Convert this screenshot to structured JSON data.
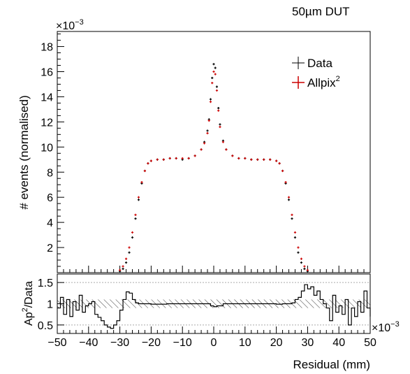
{
  "chart_data": [
    {
      "type": "scatter",
      "panel": "main",
      "annotation": "50µm DUT",
      "ylabel": "# events (normalised)",
      "y_exponent_label": "×10",
      "y_exponent_power": "−3",
      "xlim": [
        -0.05,
        0.05
      ],
      "ylim": [
        0,
        0.0192
      ],
      "yticks": [
        0.002,
        0.004,
        0.006,
        0.008,
        0.01,
        0.012,
        0.014,
        0.016,
        0.018
      ],
      "ytick_labels": [
        "2",
        "4",
        "6",
        "8",
        "10",
        "12",
        "14",
        "16",
        "18"
      ],
      "legend_position": "top-right",
      "series": [
        {
          "name": "Data",
          "color": "#000000",
          "x": [
            -0.03,
            -0.029,
            -0.028,
            -0.027,
            -0.026,
            -0.025,
            -0.024,
            -0.023,
            -0.022,
            -0.021,
            -0.02,
            -0.018,
            -0.016,
            -0.014,
            -0.012,
            -0.01,
            -0.008,
            -0.006,
            -0.004,
            -0.003,
            -0.002,
            -0.0015,
            -0.001,
            -0.0005,
            0.0,
            0.0005,
            0.001,
            0.0015,
            0.002,
            0.003,
            0.004,
            0.006,
            0.008,
            0.01,
            0.012,
            0.014,
            0.016,
            0.018,
            0.02,
            0.021,
            0.022,
            0.023,
            0.024,
            0.025,
            0.026,
            0.027,
            0.028,
            0.029,
            0.03
          ],
          "y": [
            0.0001,
            0.0003,
            0.0008,
            0.0016,
            0.0028,
            0.0043,
            0.0058,
            0.0071,
            0.0081,
            0.0087,
            0.0089,
            0.009,
            0.009,
            0.0091,
            0.0091,
            0.009,
            0.0091,
            0.0093,
            0.0098,
            0.0104,
            0.0113,
            0.0122,
            0.0138,
            0.0155,
            0.0166,
            0.0163,
            0.0148,
            0.0131,
            0.0118,
            0.0105,
            0.0098,
            0.0093,
            0.0091,
            0.0091,
            0.009,
            0.009,
            0.009,
            0.009,
            0.0089,
            0.0087,
            0.0081,
            0.0071,
            0.0058,
            0.0043,
            0.0028,
            0.0016,
            0.0008,
            0.0003,
            0.0001
          ]
        },
        {
          "name": "Allpix",
          "name_superscript": "2",
          "color": "#cc0000",
          "x": [
            -0.03,
            -0.029,
            -0.028,
            -0.027,
            -0.026,
            -0.025,
            -0.024,
            -0.023,
            -0.022,
            -0.021,
            -0.02,
            -0.018,
            -0.016,
            -0.014,
            -0.012,
            -0.01,
            -0.008,
            -0.006,
            -0.004,
            -0.003,
            -0.002,
            -0.0015,
            -0.001,
            -0.0005,
            0.0,
            0.0005,
            0.001,
            0.0015,
            0.002,
            0.003,
            0.004,
            0.006,
            0.008,
            0.01,
            0.012,
            0.014,
            0.016,
            0.018,
            0.02,
            0.021,
            0.022,
            0.023,
            0.024,
            0.025,
            0.026,
            0.027,
            0.028,
            0.029,
            0.03
          ],
          "y": [
            0.0002,
            0.0005,
            0.0011,
            0.002,
            0.0032,
            0.0046,
            0.006,
            0.0072,
            0.0081,
            0.0087,
            0.0089,
            0.009,
            0.009,
            0.0091,
            0.0091,
            0.0091,
            0.0091,
            0.0093,
            0.0098,
            0.0103,
            0.0111,
            0.0121,
            0.0136,
            0.0151,
            0.016,
            0.0158,
            0.0145,
            0.0129,
            0.0116,
            0.0104,
            0.0098,
            0.0093,
            0.0091,
            0.0091,
            0.009,
            0.009,
            0.009,
            0.009,
            0.0089,
            0.0087,
            0.0081,
            0.0072,
            0.006,
            0.0046,
            0.0032,
            0.002,
            0.0011,
            0.0005,
            0.0002
          ]
        }
      ]
    },
    {
      "type": "line",
      "panel": "ratio",
      "ylabel_main": "Ap",
      "ylabel_sup": "2",
      "ylabel_rest": "/Data",
      "xlabel": "Residual (mm)",
      "x_exponent_label": "×10",
      "x_exponent_power": "−3",
      "xlim": [
        -0.05,
        0.05
      ],
      "ylim": [
        0.3,
        1.7
      ],
      "yticks": [
        0.5,
        1,
        1.5
      ],
      "ytick_labels": [
        "0.5",
        "1",
        "1.5"
      ],
      "xticks": [
        -0.05,
        -0.04,
        -0.03,
        -0.02,
        -0.01,
        0,
        0.01,
        0.02,
        0.03,
        0.04,
        0.05
      ],
      "xtick_labels": [
        "−50",
        "−40",
        "−30",
        "−20",
        "−10",
        "0",
        "10",
        "20",
        "30",
        "40",
        "50"
      ],
      "reference_lines": [
        0.5,
        1.5
      ],
      "band": [
        0.9,
        1.1
      ],
      "x": [
        -0.05,
        -0.049,
        -0.048,
        -0.047,
        -0.046,
        -0.045,
        -0.044,
        -0.043,
        -0.042,
        -0.041,
        -0.04,
        -0.039,
        -0.038,
        -0.037,
        -0.036,
        -0.035,
        -0.034,
        -0.033,
        -0.032,
        -0.031,
        -0.03,
        -0.029,
        -0.028,
        -0.027,
        -0.026,
        -0.025,
        -0.024,
        -0.022,
        -0.02,
        -0.015,
        -0.01,
        -0.005,
        -0.003,
        -0.001,
        0.0,
        0.001,
        0.003,
        0.005,
        0.01,
        0.015,
        0.02,
        0.022,
        0.024,
        0.025,
        0.026,
        0.027,
        0.028,
        0.029,
        0.03,
        0.031,
        0.032,
        0.033,
        0.034,
        0.035,
        0.036,
        0.037,
        0.038,
        0.039,
        0.04,
        0.041,
        0.042,
        0.043,
        0.044,
        0.045,
        0.046,
        0.047,
        0.048,
        0.049,
        0.05
      ],
      "ratio": [
        0.9,
        1.15,
        0.75,
        1.1,
        0.7,
        1.05,
        0.85,
        1.2,
        0.8,
        0.95,
        1.0,
        1.05,
        0.75,
        0.68,
        0.6,
        0.5,
        0.45,
        0.42,
        0.5,
        0.6,
        0.85,
        1.1,
        1.28,
        1.25,
        1.1,
        1.02,
        1.0,
        1.0,
        0.99,
        1.0,
        1.0,
        1.0,
        1.0,
        0.95,
        0.93,
        0.95,
        1.0,
        1.0,
        1.0,
        1.0,
        0.99,
        1.0,
        1.0,
        1.02,
        1.1,
        1.15,
        1.3,
        1.45,
        1.35,
        1.4,
        1.2,
        1.3,
        1.1,
        1.0,
        0.9,
        0.6,
        1.2,
        0.8,
        0.95,
        0.75,
        1.1,
        0.5,
        0.9,
        0.7,
        1.05,
        0.8,
        1.3,
        0.9,
        0.7
      ]
    }
  ]
}
